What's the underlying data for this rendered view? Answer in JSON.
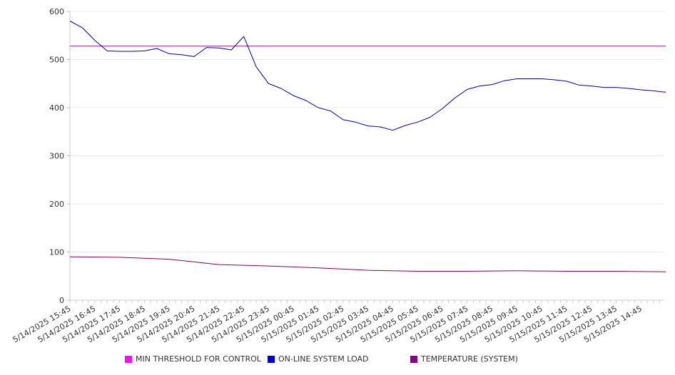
{
  "chart_data": {
    "type": "line",
    "title": "",
    "xlabel": "",
    "ylabel": "",
    "ylim": [
      0,
      600
    ],
    "yticks": [
      0,
      100,
      200,
      300,
      400,
      500,
      600
    ],
    "grid": true,
    "legend_placement": "bottom",
    "x_tick_labels": [
      "5/14/2025 15:45",
      "5/14/2025 16:45",
      "5/14/2025 17:45",
      "5/14/2025 18:45",
      "5/14/2025 19:45",
      "5/14/2025 20:45",
      "5/14/2025 21:45",
      "5/14/2025 22:45",
      "5/14/2025 23:45",
      "5/15/2025 00:45",
      "5/15/2025 01:45",
      "5/15/2025 02:45",
      "5/15/2025 03:45",
      "5/15/2025 04:45",
      "5/15/2025 05:45",
      "5/15/2025 06:45",
      "5/15/2025 07:45",
      "5/15/2025 08:45",
      "5/15/2025 09:45",
      "5/15/2025 10:45",
      "5/15/2025 11:45",
      "5/15/2025 12:45",
      "5/15/2025 13:45",
      "5/15/2025 14:45"
    ],
    "series": [
      {
        "name": "MIN THRESHOLD FOR CONTROL",
        "color": "#ee11ee",
        "line_color": "#a020a0",
        "x": [
          "5/14/2025 15:45",
          "5/15/2025 15:45"
        ],
        "values": [
          528,
          528
        ]
      },
      {
        "name": "ON-LINE SYSTEM LOAD",
        "color": "#0000dd",
        "line_color": "#0000aa",
        "x": [
          "5/14/2025 15:45",
          "5/14/2025 16:15",
          "5/14/2025 16:45",
          "5/14/2025 17:15",
          "5/14/2025 17:45",
          "5/14/2025 18:15",
          "5/14/2025 18:45",
          "5/14/2025 19:15",
          "5/14/2025 19:45",
          "5/14/2025 20:15",
          "5/14/2025 20:45",
          "5/14/2025 21:15",
          "5/14/2025 21:45",
          "5/14/2025 22:15",
          "5/14/2025 22:45",
          "5/14/2025 23:15",
          "5/14/2025 23:45",
          "5/15/2025 00:15",
          "5/15/2025 00:45",
          "5/15/2025 01:15",
          "5/15/2025 01:45",
          "5/15/2025 02:15",
          "5/15/2025 02:45",
          "5/15/2025 03:15",
          "5/15/2025 03:45",
          "5/15/2025 04:15",
          "5/15/2025 04:45",
          "5/15/2025 05:15",
          "5/15/2025 05:45",
          "5/15/2025 06:15",
          "5/15/2025 06:45",
          "5/15/2025 07:15",
          "5/15/2025 07:45",
          "5/15/2025 08:15",
          "5/15/2025 08:45",
          "5/15/2025 09:15",
          "5/15/2025 09:45",
          "5/15/2025 10:15",
          "5/15/2025 10:45",
          "5/15/2025 11:15",
          "5/15/2025 11:45",
          "5/15/2025 12:15",
          "5/15/2025 12:45",
          "5/15/2025 13:15",
          "5/15/2025 13:45",
          "5/15/2025 14:15",
          "5/15/2025 14:45",
          "5/15/2025 15:15",
          "5/15/2025 15:45"
        ],
        "values": [
          580,
          566,
          540,
          518,
          517,
          517,
          518,
          523,
          512,
          510,
          506,
          525,
          524,
          520,
          548,
          485,
          450,
          440,
          425,
          415,
          400,
          393,
          375,
          370,
          362,
          360,
          353,
          363,
          370,
          380,
          398,
          420,
          438,
          445,
          448,
          456,
          460,
          460,
          460,
          458,
          455,
          447,
          445,
          442,
          442,
          440,
          437,
          435,
          432
        ]
      },
      {
        "name": "TEMPERATURE (SYSTEM)",
        "color": "#880088",
        "line_color": "#880055",
        "x": [
          "5/14/2025 15:45",
          "5/14/2025 17:45",
          "5/14/2025 19:45",
          "5/14/2025 21:45",
          "5/14/2025 23:45",
          "5/15/2025 01:45",
          "5/15/2025 03:45",
          "5/15/2025 05:45",
          "5/15/2025 07:45",
          "5/15/2025 09:45",
          "5/15/2025 11:45",
          "5/15/2025 13:45",
          "5/15/2025 15:45"
        ],
        "values": [
          90,
          89,
          85,
          74,
          71,
          67,
          62,
          60,
          60,
          61,
          60,
          60,
          59
        ]
      }
    ]
  }
}
